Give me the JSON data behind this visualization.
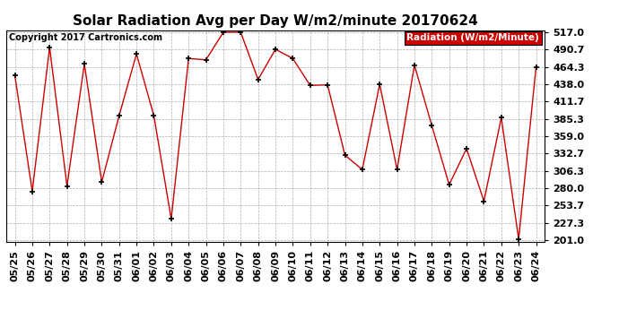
{
  "title": "Solar Radiation Avg per Day W/m2/minute 20170624",
  "copyright": "Copyright 2017 Cartronics.com",
  "legend_label": "Radiation (W/m2/Minute)",
  "x_labels": [
    "05/25",
    "05/26",
    "05/27",
    "05/28",
    "05/29",
    "05/30",
    "05/31",
    "06/01",
    "06/02",
    "06/03",
    "06/04",
    "06/05",
    "06/06",
    "06/07",
    "06/08",
    "06/09",
    "06/10",
    "06/11",
    "06/12",
    "06/13",
    "06/14",
    "06/15",
    "06/16",
    "06/17",
    "06/18",
    "06/19",
    "06/20",
    "06/21",
    "06/22",
    "06/23",
    "06/24"
  ],
  "y_values": [
    451.0,
    275.0,
    494.0,
    283.0,
    469.0,
    289.0,
    390.0,
    484.0,
    390.0,
    233.0,
    477.0,
    475.0,
    517.0,
    517.0,
    445.0,
    491.0,
    477.0,
    436.0,
    437.0,
    330.0,
    308.0,
    438.0,
    308.0,
    467.0,
    375.0,
    285.0,
    340.0,
    260.0,
    387.0,
    202.0,
    464.0
  ],
  "y_ticks": [
    201.0,
    227.3,
    253.7,
    280.0,
    306.3,
    332.7,
    359.0,
    385.3,
    411.7,
    438.0,
    464.3,
    490.7,
    517.0
  ],
  "y_min": 201.0,
  "y_max": 517.0,
  "line_color": "#cc0000",
  "marker_color": "#000000",
  "legend_bg": "#cc0000",
  "legend_text_color": "#ffffff",
  "grid_color": "#999999",
  "bg_color": "#ffffff",
  "title_fontsize": 11,
  "copyright_fontsize": 7,
  "tick_fontsize": 8,
  "legend_fontsize": 7.5
}
